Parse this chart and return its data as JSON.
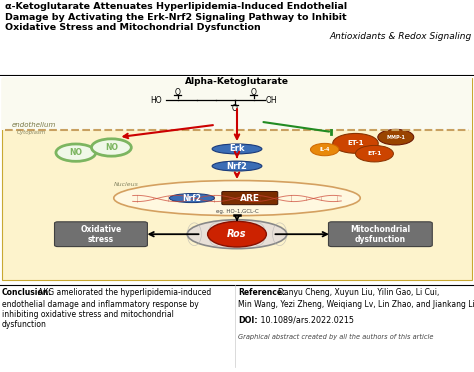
{
  "title_line1": "α-Ketoglutarate Attenuates Hyperlipidemia-Induced Endothelial",
  "title_line2": "Damage by Activating the Erk-Nrf2 Signaling Pathway to Inhibit",
  "title_line3": "Oxidative Stress and Mitochondrial Dysfunction",
  "journal": "Antioxidants & Redox Signaling",
  "akg_label": "Alpha-Ketoglutarate",
  "endothelium_label": "endothelium",
  "cytoplasm_label": "Cytoplasm",
  "nucleus_label": "Nucleus",
  "erk_label": "Erk",
  "nrf2_label1": "Nrf2",
  "nrf2_label2": "Nrf2",
  "are_label": "ARE",
  "are_sub": "eg. HO-1,GCL-C",
  "no_label": "NO",
  "et1_label": "ET-1",
  "mmp1_label": "MMP-1",
  "il4_label": "IL-4",
  "ros_label": "Ros",
  "ox_stress_label": "Oxidative\nstress",
  "mito_label": "Mitochondrial\ndysfunction",
  "conclusion_bold": "Conclusion:",
  "conclusion_text": " AKG ameliorated the hyperlipidemia-induced\nendothelial damage and inflammatory response by\ninhibiting oxidative stress and mitochondrial\ndysfunction",
  "reference_bold": "Reference:",
  "reference_text": " Danyu Cheng, Xuyun Liu, Yilin Gao, Li Cui,\nMin Wang, Yezi Zheng, Weiqiang Lv, Lin Zhao, and Jiankang Liu",
  "doi_bold": "DOI:",
  "doi_text": " 10.1089/ars.2022.0215",
  "graphical_note": "Graphical abstract created by all the authors of this article",
  "bg_main": "#FFFFFF",
  "bg_diagram": "#FDF3CC",
  "color_erk": "#3B6DB5",
  "color_nrf2": "#3B6DB5",
  "color_are": "#7B2D00",
  "color_no_green": "#7CB560",
  "color_et1_orange": "#CC5500",
  "color_mmp1_orange": "#AA4400",
  "color_il4_orange": "#E8880A",
  "color_ros_red": "#CC2200",
  "color_arrow_red": "#CC0000",
  "color_arrow_green": "#228B22",
  "endothelium_color": "#C8A060"
}
